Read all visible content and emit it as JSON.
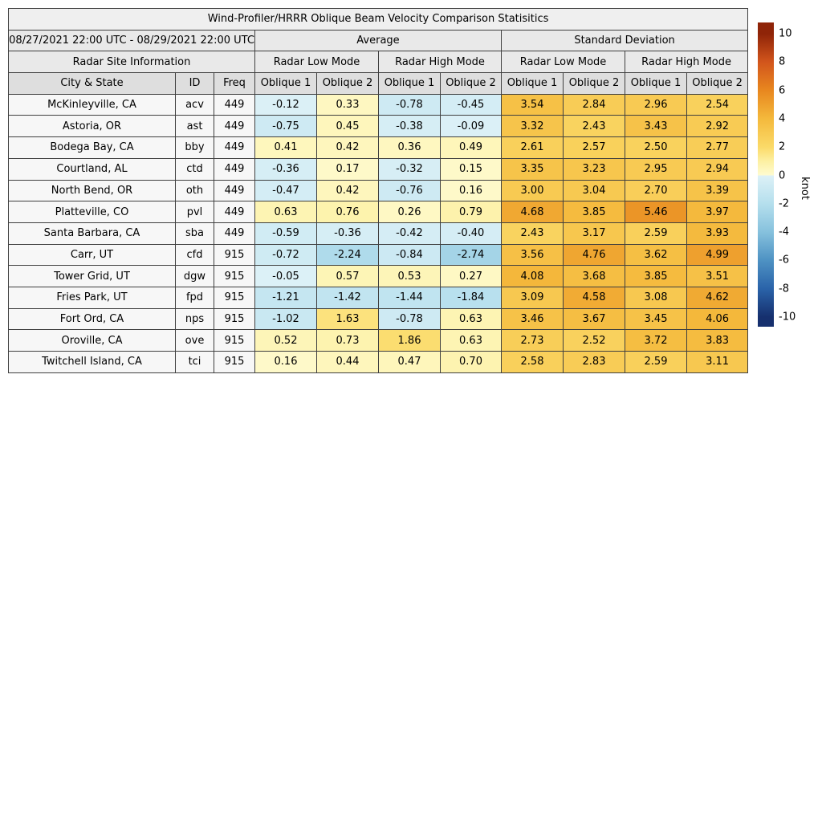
{
  "chart_data": {
    "type": "heatmap",
    "title": "Wind-Profiler/HRRR Oblique Beam Velocity Comparison Statisitics",
    "date_range": "08/27/2021 22:00 UTC - 08/29/2021 22:00 UTC",
    "site_info_label": "Radar Site Information",
    "groups": [
      "Average",
      "Standard Deviation"
    ],
    "modes": [
      "Radar Low Mode",
      "Radar High Mode",
      "Radar Low Mode",
      "Radar High Mode"
    ],
    "columns": [
      "City & State",
      "ID",
      "Freq"
    ],
    "oblique_labels": [
      "Oblique 1",
      "Oblique 2"
    ],
    "rows": [
      {
        "city": "McKinleyville, CA",
        "id": "acv",
        "freq": "449",
        "avg": [
          "-0.12",
          "0.33",
          "-0.78",
          "-0.45"
        ],
        "std": [
          "3.54",
          "2.84",
          "2.96",
          "2.54"
        ]
      },
      {
        "city": "Astoria, OR",
        "id": "ast",
        "freq": "449",
        "avg": [
          "-0.75",
          "0.45",
          "-0.38",
          "-0.09"
        ],
        "std": [
          "3.32",
          "2.43",
          "3.43",
          "2.92"
        ]
      },
      {
        "city": "Bodega Bay, CA",
        "id": "bby",
        "freq": "449",
        "avg": [
          "0.41",
          "0.42",
          "0.36",
          "0.49"
        ],
        "std": [
          "2.61",
          "2.57",
          "2.50",
          "2.77"
        ]
      },
      {
        "city": "Courtland, AL",
        "id": "ctd",
        "freq": "449",
        "avg": [
          "-0.36",
          "0.17",
          "-0.32",
          "0.15"
        ],
        "std": [
          "3.35",
          "3.23",
          "2.95",
          "2.94"
        ]
      },
      {
        "city": "North Bend, OR",
        "id": "oth",
        "freq": "449",
        "avg": [
          "-0.47",
          "0.42",
          "-0.76",
          "0.16"
        ],
        "std": [
          "3.00",
          "3.04",
          "2.70",
          "3.39"
        ]
      },
      {
        "city": "Platteville, CO",
        "id": "pvl",
        "freq": "449",
        "avg": [
          "0.63",
          "0.76",
          "0.26",
          "0.79"
        ],
        "std": [
          "4.68",
          "3.85",
          "5.46",
          "3.97"
        ]
      },
      {
        "city": "Santa Barbara, CA",
        "id": "sba",
        "freq": "449",
        "avg": [
          "-0.59",
          "-0.36",
          "-0.42",
          "-0.40"
        ],
        "std": [
          "2.43",
          "3.17",
          "2.59",
          "3.93"
        ]
      },
      {
        "city": "Carr, UT",
        "id": "cfd",
        "freq": "915",
        "avg": [
          "-0.72",
          "-2.24",
          "-0.84",
          "-2.74"
        ],
        "std": [
          "3.56",
          "4.76",
          "3.62",
          "4.99"
        ]
      },
      {
        "city": "Tower Grid, UT",
        "id": "dgw",
        "freq": "915",
        "avg": [
          "-0.05",
          "0.57",
          "0.53",
          "0.27"
        ],
        "std": [
          "4.08",
          "3.68",
          "3.85",
          "3.51"
        ]
      },
      {
        "city": "Fries Park, UT",
        "id": "fpd",
        "freq": "915",
        "avg": [
          "-1.21",
          "-1.42",
          "-1.44",
          "-1.84"
        ],
        "std": [
          "3.09",
          "4.58",
          "3.08",
          "4.62"
        ]
      },
      {
        "city": "Fort Ord, CA",
        "id": "nps",
        "freq": "915",
        "avg": [
          "-1.02",
          "1.63",
          "-0.78",
          "0.63"
        ],
        "std": [
          "3.46",
          "3.67",
          "3.45",
          "4.06"
        ]
      },
      {
        "city": "Oroville, CA",
        "id": "ove",
        "freq": "915",
        "avg": [
          "0.52",
          "0.73",
          "1.86",
          "0.63"
        ],
        "std": [
          "2.73",
          "2.52",
          "3.72",
          "3.83"
        ]
      },
      {
        "city": "Twitchell Island, CA",
        "id": "tci",
        "freq": "915",
        "avg": [
          "0.16",
          "0.44",
          "0.47",
          "0.70"
        ],
        "std": [
          "2.58",
          "2.83",
          "2.59",
          "3.11"
        ]
      }
    ],
    "colorbar": {
      "label": "knot",
      "ticks": [
        "10",
        "8",
        "6",
        "4",
        "2",
        "0",
        "-2",
        "-4",
        "-6",
        "-8",
        "-10"
      ],
      "tick_values": [
        10,
        8,
        6,
        4,
        2,
        0,
        -2,
        -4,
        -6,
        -8,
        -10
      ],
      "vmin": -10,
      "vmax": 10,
      "bar_range_min": -10.68,
      "bar_range_max": 10.79,
      "colormap_stops": [
        {
          "value": -10,
          "color": "#16306e"
        },
        {
          "value": -8,
          "color": "#2a63a9"
        },
        {
          "value": -6,
          "color": "#4e92c3"
        },
        {
          "value": -4,
          "color": "#86c1dd"
        },
        {
          "value": -2,
          "color": "#b5dfed"
        },
        {
          "value": -0.01,
          "color": "#ddf1f7"
        },
        {
          "value": 0.01,
          "color": "#fefbd0"
        },
        {
          "value": 1,
          "color": "#fdf0a2"
        },
        {
          "value": 2,
          "color": "#fbda68"
        },
        {
          "value": 4,
          "color": "#f4b93c"
        },
        {
          "value": 6,
          "color": "#e8871f"
        },
        {
          "value": 8,
          "color": "#d2551c"
        },
        {
          "value": 10,
          "color": "#8f2408"
        }
      ]
    },
    "style_colors": {
      "grid_border": "#3f3f3f",
      "header_bg": "#e9e9e9",
      "column_header_bg": "#dedede",
      "title_bg": "#efefef",
      "site_cell_bg": "#f7f7f7"
    }
  }
}
